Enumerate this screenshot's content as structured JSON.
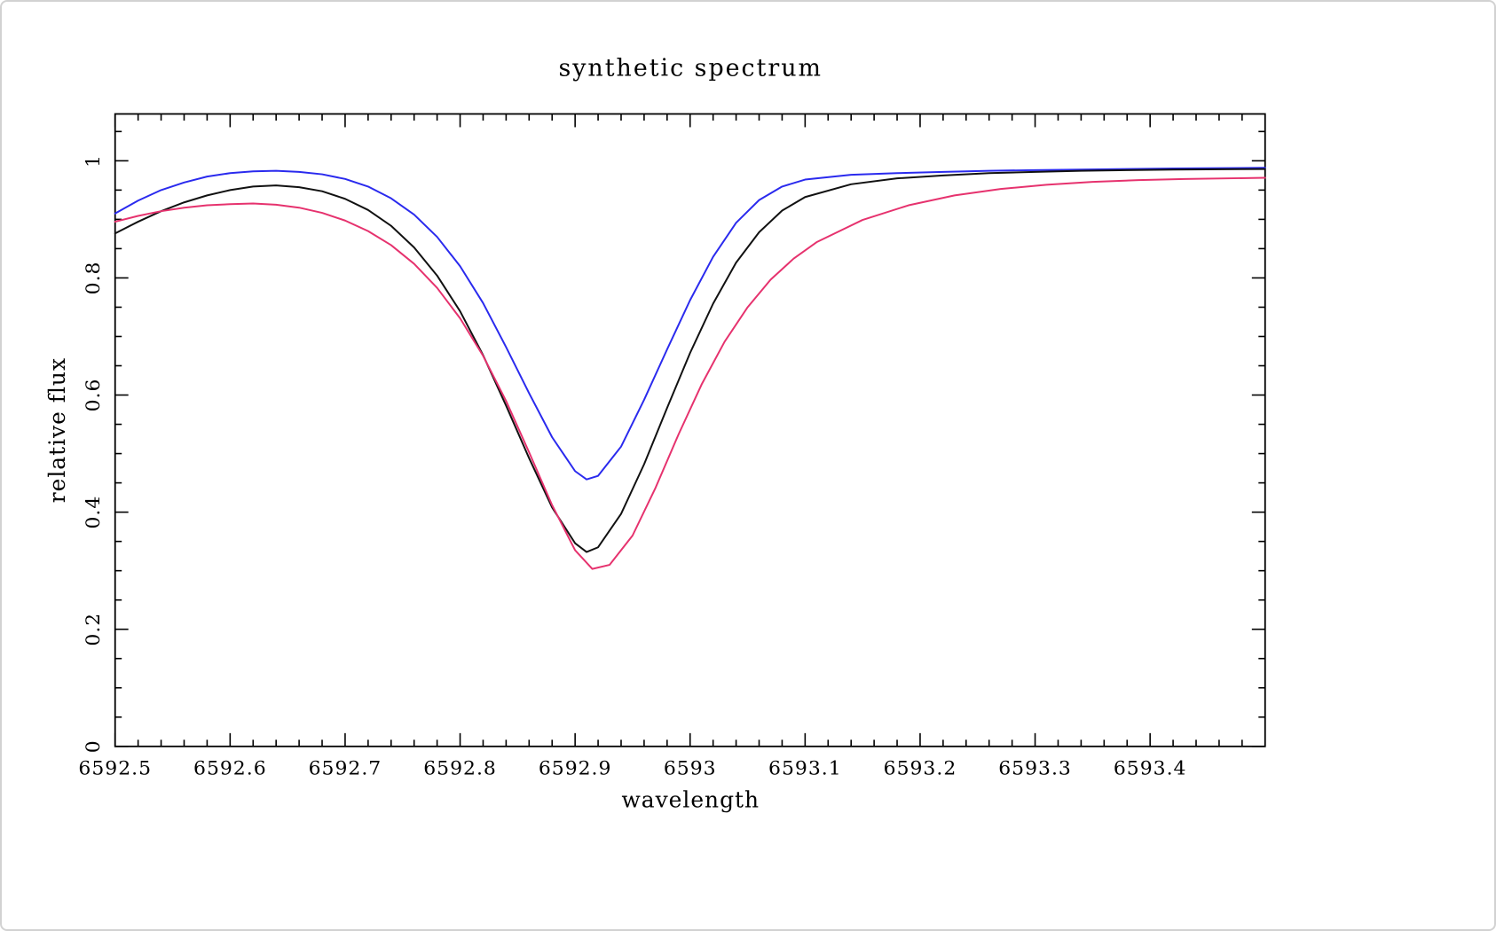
{
  "chart_data": {
    "type": "line",
    "title": "synthetic spectrum",
    "xlabel": "wavelength",
    "ylabel": "relative flux",
    "xlim": [
      6592.5,
      6593.5
    ],
    "ylim": [
      0,
      1.08
    ],
    "grid": false,
    "legend": "none",
    "frame_color": "#000000",
    "xtick_values": [
      6592.5,
      6592.6,
      6592.7,
      6592.8,
      6592.9,
      6593,
      6593.1,
      6593.2,
      6593.3,
      6593.4
    ],
    "xtick_labels": [
      "6592.5",
      "6592.6",
      "6592.7",
      "6592.8",
      "6592.9",
      "6593",
      "6593.1",
      "6593.2",
      "6593.3",
      "6593.4"
    ],
    "ytick_values": [
      0,
      0.2,
      0.4,
      0.6,
      0.8,
      1
    ],
    "ytick_labels": [
      "0",
      "0.2",
      "0.4",
      "0.6",
      "0.8",
      "1"
    ],
    "x_minor_step": 0.02,
    "y_minor_step": 0.05,
    "series": [
      {
        "name": "blue",
        "color": "#2a2aee",
        "points": [
          [
            6592.5,
            0.91
          ],
          [
            6592.52,
            0.932
          ],
          [
            6592.54,
            0.95
          ],
          [
            6592.56,
            0.963
          ],
          [
            6592.58,
            0.973
          ],
          [
            6592.6,
            0.979
          ],
          [
            6592.62,
            0.982
          ],
          [
            6592.64,
            0.983
          ],
          [
            6592.66,
            0.981
          ],
          [
            6592.68,
            0.977
          ],
          [
            6592.7,
            0.969
          ],
          [
            6592.72,
            0.956
          ],
          [
            6592.74,
            0.936
          ],
          [
            6592.76,
            0.908
          ],
          [
            6592.78,
            0.87
          ],
          [
            6592.8,
            0.82
          ],
          [
            6592.82,
            0.757
          ],
          [
            6592.84,
            0.682
          ],
          [
            6592.86,
            0.603
          ],
          [
            6592.88,
            0.528
          ],
          [
            6592.9,
            0.47
          ],
          [
            6592.91,
            0.456
          ],
          [
            6592.92,
            0.462
          ],
          [
            6592.94,
            0.512
          ],
          [
            6592.96,
            0.592
          ],
          [
            6592.98,
            0.678
          ],
          [
            6593.0,
            0.762
          ],
          [
            6593.02,
            0.836
          ],
          [
            6593.04,
            0.894
          ],
          [
            6593.06,
            0.933
          ],
          [
            6593.08,
            0.956
          ],
          [
            6593.1,
            0.968
          ],
          [
            6593.14,
            0.976
          ],
          [
            6593.18,
            0.979
          ],
          [
            6593.22,
            0.981
          ],
          [
            6593.26,
            0.983
          ],
          [
            6593.3,
            0.984
          ],
          [
            6593.34,
            0.985
          ],
          [
            6593.38,
            0.986
          ],
          [
            6593.42,
            0.987
          ],
          [
            6593.5,
            0.988
          ]
        ]
      },
      {
        "name": "black",
        "color": "#111111",
        "points": [
          [
            6592.5,
            0.876
          ],
          [
            6592.52,
            0.896
          ],
          [
            6592.54,
            0.914
          ],
          [
            6592.56,
            0.929
          ],
          [
            6592.58,
            0.941
          ],
          [
            6592.6,
            0.95
          ],
          [
            6592.62,
            0.956
          ],
          [
            6592.64,
            0.958
          ],
          [
            6592.66,
            0.955
          ],
          [
            6592.68,
            0.948
          ],
          [
            6592.7,
            0.935
          ],
          [
            6592.72,
            0.916
          ],
          [
            6592.74,
            0.889
          ],
          [
            6592.76,
            0.852
          ],
          [
            6592.78,
            0.804
          ],
          [
            6592.8,
            0.743
          ],
          [
            6592.82,
            0.668
          ],
          [
            6592.84,
            0.582
          ],
          [
            6592.86,
            0.492
          ],
          [
            6592.88,
            0.408
          ],
          [
            6592.9,
            0.347
          ],
          [
            6592.91,
            0.332
          ],
          [
            6592.92,
            0.34
          ],
          [
            6592.94,
            0.397
          ],
          [
            6592.96,
            0.482
          ],
          [
            6592.98,
            0.578
          ],
          [
            6593.0,
            0.672
          ],
          [
            6593.02,
            0.756
          ],
          [
            6593.04,
            0.826
          ],
          [
            6593.06,
            0.878
          ],
          [
            6593.08,
            0.915
          ],
          [
            6593.1,
            0.938
          ],
          [
            6593.14,
            0.96
          ],
          [
            6593.18,
            0.97
          ],
          [
            6593.22,
            0.975
          ],
          [
            6593.26,
            0.979
          ],
          [
            6593.3,
            0.981
          ],
          [
            6593.34,
            0.983
          ],
          [
            6593.38,
            0.984
          ],
          [
            6593.42,
            0.985
          ],
          [
            6593.5,
            0.986
          ]
        ]
      },
      {
        "name": "red",
        "color": "#e6326e",
        "points": [
          [
            6592.5,
            0.896
          ],
          [
            6592.52,
            0.906
          ],
          [
            6592.54,
            0.914
          ],
          [
            6592.56,
            0.92
          ],
          [
            6592.58,
            0.924
          ],
          [
            6592.6,
            0.926
          ],
          [
            6592.62,
            0.927
          ],
          [
            6592.64,
            0.925
          ],
          [
            6592.66,
            0.92
          ],
          [
            6592.68,
            0.911
          ],
          [
            6592.7,
            0.898
          ],
          [
            6592.72,
            0.88
          ],
          [
            6592.74,
            0.856
          ],
          [
            6592.76,
            0.824
          ],
          [
            6592.78,
            0.783
          ],
          [
            6592.8,
            0.731
          ],
          [
            6592.82,
            0.667
          ],
          [
            6592.84,
            0.59
          ],
          [
            6592.86,
            0.502
          ],
          [
            6592.88,
            0.412
          ],
          [
            6592.9,
            0.335
          ],
          [
            6592.915,
            0.303
          ],
          [
            6592.93,
            0.31
          ],
          [
            6592.95,
            0.36
          ],
          [
            6592.97,
            0.442
          ],
          [
            6592.99,
            0.533
          ],
          [
            6593.01,
            0.618
          ],
          [
            6593.03,
            0.691
          ],
          [
            6593.05,
            0.75
          ],
          [
            6593.07,
            0.797
          ],
          [
            6593.09,
            0.833
          ],
          [
            6593.11,
            0.861
          ],
          [
            6593.15,
            0.899
          ],
          [
            6593.19,
            0.924
          ],
          [
            6593.23,
            0.941
          ],
          [
            6593.27,
            0.952
          ],
          [
            6593.31,
            0.959
          ],
          [
            6593.35,
            0.964
          ],
          [
            6593.39,
            0.967
          ],
          [
            6593.43,
            0.969
          ],
          [
            6593.5,
            0.971
          ]
        ]
      }
    ]
  }
}
